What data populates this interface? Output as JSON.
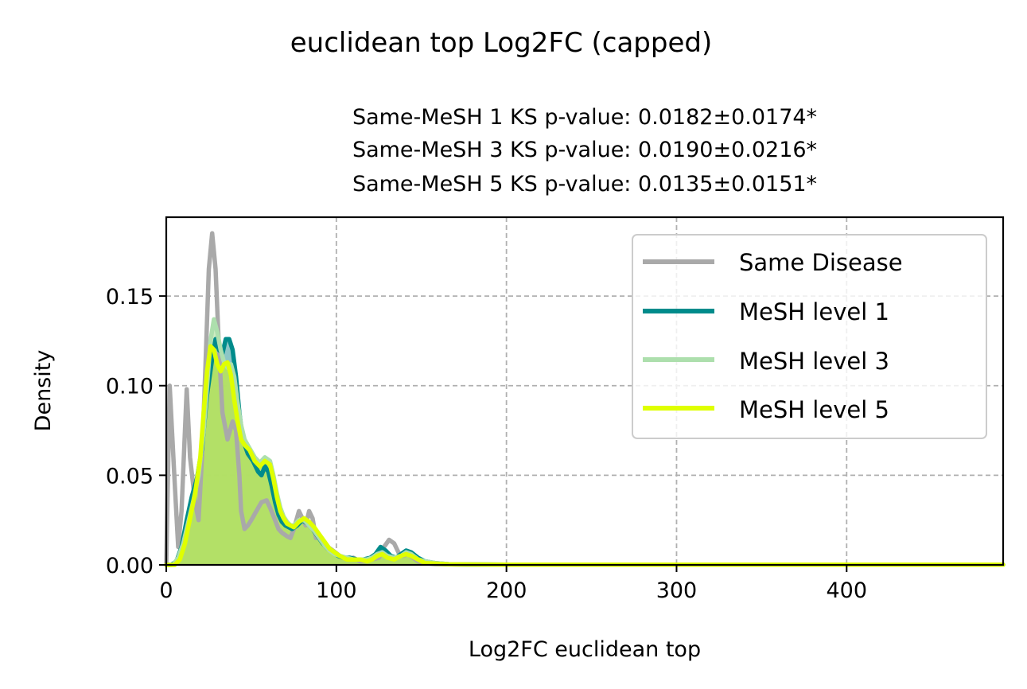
{
  "chart_data": {
    "type": "line",
    "title": "euclidean top Log2FC (capped)",
    "subtitle_lines": [
      "Same-MeSH 1 KS p-value: 0.0182±0.0174*",
      "Same-MeSH 3 KS p-value: 0.0190±0.0216*",
      "Same-MeSH 5 KS p-value: 0.0135±0.0151*"
    ],
    "xlabel": "Log2FC euclidean top",
    "ylabel": "Density",
    "xlim": [
      0,
      492
    ],
    "ylim": [
      0,
      0.194
    ],
    "xticks": [
      0,
      100,
      200,
      300,
      400
    ],
    "xtick_labels": [
      "0",
      "100",
      "200",
      "300",
      "400"
    ],
    "yticks": [
      0,
      0.05,
      0.1,
      0.15
    ],
    "ytick_labels": [
      "0.00",
      "0.05",
      "0.10",
      "0.15"
    ],
    "grid": true,
    "legend_position": "top-right",
    "series": [
      {
        "name": "Same Disease",
        "color": "#a9a9a9",
        "fill": false,
        "points": [
          [
            0,
            0
          ],
          [
            2,
            0.1
          ],
          [
            5,
            0.045
          ],
          [
            7,
            0.01
          ],
          [
            9,
            0.03
          ],
          [
            12,
            0.098
          ],
          [
            14,
            0.06
          ],
          [
            17,
            0.035
          ],
          [
            19,
            0.025
          ],
          [
            21,
            0.06
          ],
          [
            23,
            0.11
          ],
          [
            25,
            0.165
          ],
          [
            27,
            0.185
          ],
          [
            29,
            0.165
          ],
          [
            31,
            0.12
          ],
          [
            33,
            0.085
          ],
          [
            36,
            0.07
          ],
          [
            39,
            0.08
          ],
          [
            41,
            0.075
          ],
          [
            43,
            0.05
          ],
          [
            44,
            0.03
          ],
          [
            46,
            0.02
          ],
          [
            48,
            0.022
          ],
          [
            50,
            0.025
          ],
          [
            53,
            0.03
          ],
          [
            56,
            0.035
          ],
          [
            59,
            0.036
          ],
          [
            61,
            0.032
          ],
          [
            64,
            0.025
          ],
          [
            66,
            0.02
          ],
          [
            68,
            0.018
          ],
          [
            71,
            0.016
          ],
          [
            73,
            0.015
          ],
          [
            75,
            0.02
          ],
          [
            78,
            0.03
          ],
          [
            80,
            0.026
          ],
          [
            82,
            0.022
          ],
          [
            84,
            0.03
          ],
          [
            86,
            0.026
          ],
          [
            88,
            0.015
          ],
          [
            90,
            0.016
          ],
          [
            92,
            0.014
          ],
          [
            95,
            0.01
          ],
          [
            98,
            0.008
          ],
          [
            102,
            0.005
          ],
          [
            106,
            0.003
          ],
          [
            110,
            0.004
          ],
          [
            114,
            0.002
          ],
          [
            118,
            0.002
          ],
          [
            121,
            0.003
          ],
          [
            125,
            0.004
          ],
          [
            128,
            0.01
          ],
          [
            131,
            0.014
          ],
          [
            134,
            0.012
          ],
          [
            137,
            0.006
          ],
          [
            139,
            0.005
          ],
          [
            142,
            0.006
          ],
          [
            145,
            0.004
          ],
          [
            148,
            0.002
          ],
          [
            152,
            0.001
          ],
          [
            158,
            0.0005
          ],
          [
            170,
            0.0002
          ],
          [
            200,
            0.0001
          ],
          [
            492,
            0.0001
          ]
        ]
      },
      {
        "name": "MeSH level 1",
        "color": "#008b8b",
        "fill": true,
        "fill_color": "#66b3b3",
        "points": [
          [
            0,
            0
          ],
          [
            3,
            0
          ],
          [
            6,
            0.002
          ],
          [
            9,
            0.01
          ],
          [
            12,
            0.025
          ],
          [
            15,
            0.038
          ],
          [
            18,
            0.048
          ],
          [
            21,
            0.065
          ],
          [
            24,
            0.095
          ],
          [
            27,
            0.115
          ],
          [
            29,
            0.126
          ],
          [
            31,
            0.12
          ],
          [
            33,
            0.118
          ],
          [
            35,
            0.126
          ],
          [
            37,
            0.126
          ],
          [
            39,
            0.12
          ],
          [
            41,
            0.105
          ],
          [
            43,
            0.085
          ],
          [
            45,
            0.07
          ],
          [
            48,
            0.062
          ],
          [
            51,
            0.058
          ],
          [
            54,
            0.052
          ],
          [
            56,
            0.05
          ],
          [
            58,
            0.055
          ],
          [
            60,
            0.052
          ],
          [
            62,
            0.044
          ],
          [
            64,
            0.035
          ],
          [
            66,
            0.028
          ],
          [
            68,
            0.024
          ],
          [
            70,
            0.022
          ],
          [
            72,
            0.021
          ],
          [
            74,
            0.02
          ],
          [
            77,
            0.022
          ],
          [
            80,
            0.025
          ],
          [
            83,
            0.023
          ],
          [
            86,
            0.02
          ],
          [
            89,
            0.016
          ],
          [
            92,
            0.012
          ],
          [
            95,
            0.009
          ],
          [
            98,
            0.007
          ],
          [
            101,
            0.005
          ],
          [
            104,
            0.004
          ],
          [
            108,
            0.004
          ],
          [
            112,
            0.003
          ],
          [
            116,
            0.003
          ],
          [
            120,
            0.004
          ],
          [
            123,
            0.006
          ],
          [
            126,
            0.01
          ],
          [
            129,
            0.008
          ],
          [
            132,
            0.005
          ],
          [
            135,
            0.004
          ],
          [
            138,
            0.006
          ],
          [
            141,
            0.008
          ],
          [
            144,
            0.007
          ],
          [
            148,
            0.004
          ],
          [
            152,
            0.002
          ],
          [
            158,
            0.001
          ],
          [
            166,
            0.0004
          ],
          [
            180,
            0.0002
          ],
          [
            200,
            0.0001
          ],
          [
            492,
            0.0001
          ]
        ]
      },
      {
        "name": "MeSH level 3",
        "color": "#addfad",
        "fill": true,
        "fill_color": "#bde5ad",
        "points": [
          [
            0,
            0
          ],
          [
            4,
            0
          ],
          [
            7,
            0.004
          ],
          [
            10,
            0.012
          ],
          [
            13,
            0.024
          ],
          [
            16,
            0.036
          ],
          [
            19,
            0.05
          ],
          [
            22,
            0.075
          ],
          [
            24,
            0.1
          ],
          [
            26,
            0.125
          ],
          [
            28,
            0.137
          ],
          [
            30,
            0.13
          ],
          [
            32,
            0.12
          ],
          [
            34,
            0.113
          ],
          [
            36,
            0.11
          ],
          [
            38,
            0.112
          ],
          [
            40,
            0.105
          ],
          [
            42,
            0.09
          ],
          [
            44,
            0.078
          ],
          [
            46,
            0.07
          ],
          [
            49,
            0.065
          ],
          [
            52,
            0.06
          ],
          [
            55,
            0.057
          ],
          [
            58,
            0.06
          ],
          [
            61,
            0.058
          ],
          [
            63,
            0.05
          ],
          [
            65,
            0.04
          ],
          [
            67,
            0.032
          ],
          [
            69,
            0.027
          ],
          [
            71,
            0.024
          ],
          [
            73,
            0.022
          ],
          [
            75,
            0.022
          ],
          [
            78,
            0.025
          ],
          [
            81,
            0.025
          ],
          [
            84,
            0.022
          ],
          [
            87,
            0.019
          ],
          [
            90,
            0.015
          ],
          [
            93,
            0.011
          ],
          [
            96,
            0.008
          ],
          [
            99,
            0.006
          ],
          [
            102,
            0.005
          ],
          [
            106,
            0.004
          ],
          [
            110,
            0.003
          ],
          [
            114,
            0.003
          ],
          [
            118,
            0.003
          ],
          [
            121,
            0.004
          ],
          [
            124,
            0.006
          ],
          [
            127,
            0.007
          ],
          [
            130,
            0.005
          ],
          [
            134,
            0.004
          ],
          [
            138,
            0.005
          ],
          [
            141,
            0.007
          ],
          [
            144,
            0.006
          ],
          [
            148,
            0.003
          ],
          [
            152,
            0.002
          ],
          [
            158,
            0.001
          ],
          [
            166,
            0.0004
          ],
          [
            180,
            0.0002
          ],
          [
            200,
            0.0001
          ],
          [
            492,
            0.0001
          ]
        ]
      },
      {
        "name": "MeSH level 5",
        "color": "#dfff00",
        "fill": true,
        "fill_color": "#b4e04e",
        "points": [
          [
            0,
            0
          ],
          [
            5,
            0
          ],
          [
            8,
            0.003
          ],
          [
            11,
            0.012
          ],
          [
            14,
            0.026
          ],
          [
            17,
            0.04
          ],
          [
            20,
            0.06
          ],
          [
            22,
            0.085
          ],
          [
            24,
            0.108
          ],
          [
            26,
            0.122
          ],
          [
            28,
            0.12
          ],
          [
            30,
            0.112
          ],
          [
            32,
            0.108
          ],
          [
            34,
            0.112
          ],
          [
            36,
            0.113
          ],
          [
            38,
            0.106
          ],
          [
            40,
            0.092
          ],
          [
            42,
            0.08
          ],
          [
            44,
            0.07
          ],
          [
            46,
            0.067
          ],
          [
            49,
            0.064
          ],
          [
            52,
            0.058
          ],
          [
            55,
            0.055
          ],
          [
            58,
            0.058
          ],
          [
            61,
            0.056
          ],
          [
            63,
            0.048
          ],
          [
            65,
            0.038
          ],
          [
            67,
            0.03
          ],
          [
            69,
            0.026
          ],
          [
            71,
            0.023
          ],
          [
            73,
            0.022
          ],
          [
            75,
            0.021
          ],
          [
            78,
            0.024
          ],
          [
            81,
            0.026
          ],
          [
            84,
            0.024
          ],
          [
            87,
            0.021
          ],
          [
            90,
            0.017
          ],
          [
            93,
            0.013
          ],
          [
            96,
            0.009
          ],
          [
            99,
            0.007
          ],
          [
            102,
            0.005
          ],
          [
            106,
            0.003
          ],
          [
            110,
            0.003
          ],
          [
            114,
            0.003
          ],
          [
            118,
            0.002
          ],
          [
            121,
            0.003
          ],
          [
            124,
            0.005
          ],
          [
            127,
            0.006
          ],
          [
            130,
            0.004
          ],
          [
            134,
            0.003
          ],
          [
            138,
            0.005
          ],
          [
            141,
            0.006
          ],
          [
            144,
            0.005
          ],
          [
            148,
            0.003
          ],
          [
            152,
            0.001
          ],
          [
            158,
            0.0007
          ],
          [
            166,
            0.0003
          ],
          [
            180,
            0.0002
          ],
          [
            200,
            0.0001
          ],
          [
            492,
            0.0001
          ]
        ]
      }
    ]
  }
}
